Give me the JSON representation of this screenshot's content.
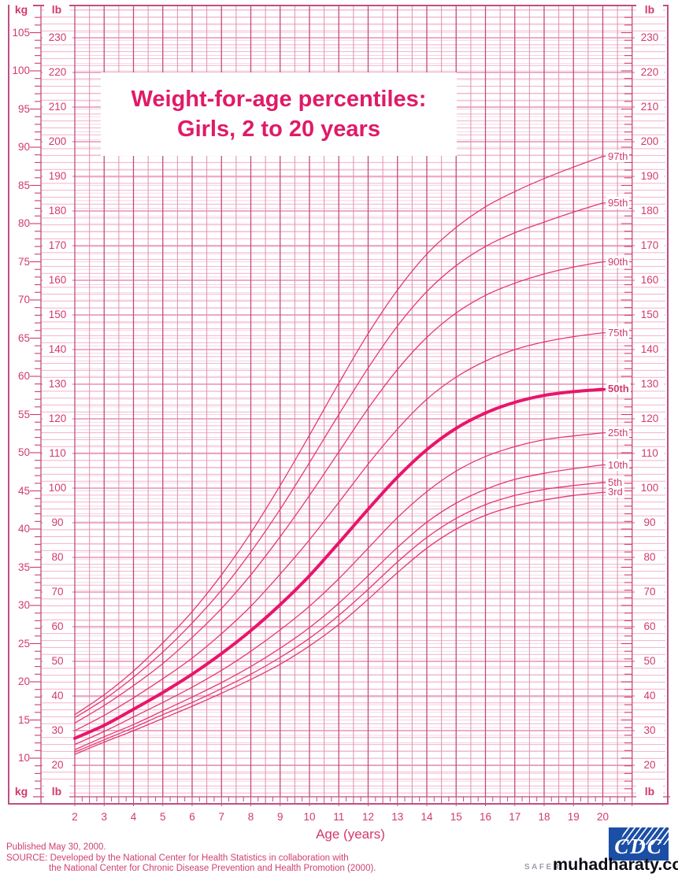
{
  "title": {
    "line1": "Weight-for-age percentiles:",
    "line2": "Girls, 2 to 20 years"
  },
  "units": {
    "kg": "kg",
    "lb": "lb"
  },
  "axes": {
    "kg_ticks": [
      10,
      15,
      20,
      25,
      30,
      35,
      40,
      45,
      50,
      55,
      60,
      65,
      70,
      75,
      80,
      85,
      90,
      95,
      100,
      105
    ],
    "lb_ticks": [
      20,
      30,
      40,
      50,
      60,
      70,
      80,
      90,
      100,
      110,
      120,
      130,
      140,
      150,
      160,
      170,
      180,
      190,
      200,
      210,
      220,
      230
    ],
    "age_ticks": [
      2,
      3,
      4,
      5,
      6,
      7,
      8,
      9,
      10,
      11,
      12,
      13,
      14,
      15,
      16,
      17,
      18,
      19,
      20
    ],
    "x_label": "Age (years)"
  },
  "chart_data": {
    "type": "line",
    "title": "Weight-for-age percentiles: Girls, 2 to 20 years",
    "xlabel": "Age (years)",
    "ylabel_left": "kg",
    "ylabel_secondary": "lb",
    "x_range": [
      2,
      20
    ],
    "y_range_kg": [
      10,
      105
    ],
    "y_range_lb": [
      20,
      230
    ],
    "grid": "on",
    "legend_position": "right-curve-ends",
    "emphasized_series": "50th",
    "x": [
      2,
      3,
      4,
      5,
      6,
      7,
      8,
      9,
      10,
      11,
      12,
      13,
      14,
      15,
      16,
      17,
      18,
      19,
      20
    ],
    "series": [
      {
        "name": "3rd",
        "values": [
          10.5,
          12.1,
          13.6,
          15.2,
          16.8,
          18.5,
          20.3,
          22.3,
          24.7,
          27.5,
          30.8,
          34.3,
          37.5,
          40.0,
          41.8,
          43.0,
          43.8,
          44.4,
          44.8
        ]
      },
      {
        "name": "5th",
        "values": [
          10.8,
          12.4,
          14.0,
          15.7,
          17.3,
          19.1,
          21.0,
          23.2,
          25.7,
          28.7,
          32.1,
          35.7,
          38.9,
          41.4,
          43.2,
          44.4,
          45.2,
          45.7,
          46.1
        ]
      },
      {
        "name": "10th",
        "values": [
          11.1,
          12.8,
          14.4,
          16.2,
          18.0,
          19.9,
          22.0,
          24.4,
          27.1,
          30.3,
          33.9,
          37.6,
          40.9,
          43.4,
          45.2,
          46.5,
          47.3,
          47.9,
          48.4
        ]
      },
      {
        "name": "25th",
        "values": [
          11.8,
          13.5,
          15.4,
          17.3,
          19.3,
          21.5,
          24.0,
          26.8,
          29.9,
          33.5,
          37.5,
          41.5,
          44.9,
          47.6,
          49.5,
          50.8,
          51.7,
          52.2,
          52.6
        ]
      },
      {
        "name": "50th",
        "values": [
          12.6,
          14.3,
          16.4,
          18.6,
          21.0,
          23.7,
          26.7,
          30.1,
          33.9,
          38.2,
          42.6,
          46.8,
          50.4,
          53.2,
          55.2,
          56.6,
          57.5,
          58.0,
          58.3
        ]
      },
      {
        "name": "75th",
        "values": [
          13.6,
          15.6,
          17.9,
          20.4,
          23.1,
          26.3,
          29.9,
          34.1,
          38.6,
          43.5,
          48.5,
          53.1,
          57.0,
          59.9,
          62.0,
          63.5,
          64.5,
          65.2,
          65.7
        ]
      },
      {
        "name": "90th",
        "values": [
          14.6,
          16.9,
          19.5,
          22.4,
          25.8,
          29.6,
          34.0,
          39.0,
          44.4,
          50.1,
          55.8,
          60.9,
          65.1,
          68.3,
          70.6,
          72.2,
          73.4,
          74.3,
          75.0
        ]
      },
      {
        "name": "95th",
        "values": [
          15.3,
          17.7,
          20.6,
          23.9,
          27.7,
          32.0,
          37.0,
          42.6,
          48.7,
          55.0,
          61.1,
          66.6,
          71.1,
          74.5,
          77.0,
          78.8,
          80.2,
          81.5,
          82.7
        ]
      },
      {
        "name": "97th",
        "values": [
          15.7,
          18.3,
          21.4,
          25.1,
          29.2,
          34.0,
          39.5,
          45.7,
          52.3,
          59.1,
          65.6,
          71.3,
          76.0,
          79.5,
          82.2,
          84.2,
          85.9,
          87.4,
          88.8
        ]
      }
    ]
  },
  "footer": {
    "published": "Published May 30, 2000.",
    "source_line1": "SOURCE: Developed by the National Center for Health Statistics in collaboration with",
    "source_line2": "the National Center for Chronic Disease Prevention and Health Promotion (2000)."
  },
  "branding": {
    "cdc": "CDC",
    "tagline": "SAFER",
    "watermark": "muhadharaty.com"
  },
  "colors": {
    "accent": "#e8156b",
    "curve": "#e23a72",
    "text": "#d23a6b",
    "grid_h_minor": "#f3b3c9",
    "grid_h_major": "#e57ba6",
    "grid_h_kg": "#ecc9da",
    "grid_v_minor": "#dd8fb0",
    "grid_v_major": "#bf4d7e",
    "cdc_blue": "#1b4fa5",
    "tagline_grey": "#9aa0a8",
    "watermark": "#0d0d18"
  }
}
